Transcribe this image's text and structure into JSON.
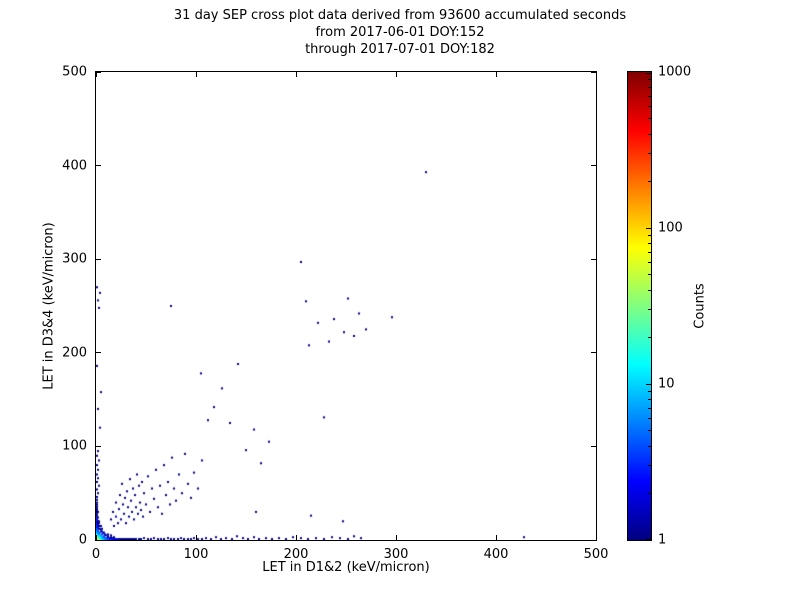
{
  "chart_data": {
    "type": "scatter",
    "title": "31 day SEP cross plot data derived from 93600 accumulated seconds",
    "subtitle": [
      "from 2017-06-01 DOY:152",
      "through 2017-07-01 DOY:182"
    ],
    "xlabel": "LET in D1&2 (keV/micron)",
    "ylabel": "LET in D3&4 (keV/micron)",
    "xlim": [
      0,
      500
    ],
    "ylim": [
      0,
      500
    ],
    "xticks": [
      0,
      100,
      200,
      300,
      400,
      500
    ],
    "yticks": [
      0,
      100,
      200,
      300,
      400,
      500
    ],
    "grid": false,
    "marker_size_px": 2,
    "colorbar": {
      "label": "Counts",
      "scale": "log",
      "min": 1,
      "max": 1000,
      "ticks": [
        1,
        10,
        100,
        1000
      ],
      "colormap": "jet"
    },
    "points": [
      [
        0.6,
        0.6,
        120
      ],
      [
        1,
        1,
        110
      ],
      [
        1.6,
        0.8,
        90
      ],
      [
        0.8,
        1.6,
        85
      ],
      [
        2,
        1,
        70
      ],
      [
        1,
        2,
        66
      ],
      [
        2,
        2,
        52
      ],
      [
        3,
        1,
        44
      ],
      [
        1,
        3,
        42
      ],
      [
        3,
        2,
        34
      ],
      [
        2,
        3,
        33
      ],
      [
        3,
        3,
        26
      ],
      [
        4,
        1,
        32
      ],
      [
        1,
        4,
        30
      ],
      [
        4,
        2,
        24
      ],
      [
        2,
        4,
        23
      ],
      [
        4,
        3,
        17
      ],
      [
        3,
        4,
        17
      ],
      [
        4,
        4,
        13
      ],
      [
        5,
        1,
        22
      ],
      [
        1,
        5,
        21
      ],
      [
        5,
        2,
        16
      ],
      [
        2,
        5,
        16
      ],
      [
        5,
        3,
        11
      ],
      [
        3,
        5,
        11
      ],
      [
        5,
        5,
        7
      ],
      [
        6,
        1,
        15
      ],
      [
        1,
        6,
        15
      ],
      [
        6,
        2,
        11
      ],
      [
        2,
        6,
        11
      ],
      [
        6,
        3,
        8
      ],
      [
        3,
        6,
        8
      ],
      [
        6,
        6,
        4
      ],
      [
        7,
        1,
        11
      ],
      [
        1,
        7,
        11
      ],
      [
        7,
        2,
        8
      ],
      [
        2,
        7,
        8
      ],
      [
        7,
        3,
        6
      ],
      [
        3,
        7,
        6
      ],
      [
        7,
        7,
        3
      ],
      [
        8,
        1,
        9
      ],
      [
        1,
        8,
        9
      ],
      [
        8,
        2,
        7
      ],
      [
        2,
        8,
        6
      ],
      [
        8,
        4,
        4
      ],
      [
        4,
        8,
        4
      ],
      [
        9,
        1,
        7
      ],
      [
        1,
        9,
        7
      ],
      [
        9,
        2,
        5
      ],
      [
        2,
        9,
        5
      ],
      [
        10,
        1,
        6
      ],
      [
        1,
        10,
        6
      ],
      [
        10,
        2,
        4
      ],
      [
        2,
        10,
        4
      ],
      [
        10,
        5,
        2
      ],
      [
        5,
        10,
        2
      ],
      [
        11,
        1,
        5
      ],
      [
        1,
        11,
        5
      ],
      [
        12,
        1,
        4
      ],
      [
        1,
        12,
        4
      ],
      [
        12,
        3,
        2
      ],
      [
        3,
        12,
        2
      ],
      [
        13,
        1,
        4
      ],
      [
        1,
        13,
        4
      ],
      [
        14,
        1,
        3
      ],
      [
        1,
        14,
        3
      ],
      [
        14,
        2,
        2
      ],
      [
        2,
        14,
        2
      ],
      [
        15,
        1,
        3
      ],
      [
        1,
        15,
        3
      ],
      [
        16,
        1,
        3
      ],
      [
        1,
        16,
        3
      ],
      [
        16,
        2,
        2
      ],
      [
        2,
        16,
        2
      ],
      [
        18,
        1,
        2
      ],
      [
        1,
        18,
        2
      ],
      [
        18,
        3,
        1
      ],
      [
        3,
        18,
        1
      ],
      [
        20,
        1,
        2
      ],
      [
        1,
        20,
        2
      ],
      [
        2,
        18,
        1
      ],
      [
        22,
        1,
        2
      ],
      [
        1,
        22,
        2
      ],
      [
        4,
        12,
        1
      ],
      [
        12,
        4,
        1
      ],
      [
        24,
        1,
        1
      ],
      [
        1,
        24,
        2
      ],
      [
        2,
        20,
        1
      ],
      [
        26,
        1,
        1
      ],
      [
        1,
        26,
        1
      ],
      [
        28,
        1,
        1
      ],
      [
        1,
        28,
        1
      ],
      [
        2,
        24,
        1
      ],
      [
        30,
        1,
        1
      ],
      [
        1,
        30,
        1
      ],
      [
        32,
        1,
        1
      ],
      [
        1,
        32,
        1
      ],
      [
        3,
        20,
        1
      ],
      [
        34,
        1,
        1
      ],
      [
        1,
        34,
        1
      ],
      [
        36,
        1,
        1
      ],
      [
        1,
        36,
        1
      ],
      [
        2,
        30,
        1
      ],
      [
        38,
        1,
        1
      ],
      [
        1,
        38,
        1
      ],
      [
        40,
        1,
        1
      ],
      [
        1,
        40,
        1
      ],
      [
        1,
        43,
        1
      ],
      [
        43,
        1,
        1
      ],
      [
        5,
        15,
        1
      ],
      [
        15,
        5,
        1
      ],
      [
        6,
        12,
        1
      ],
      [
        12,
        6,
        1
      ],
      [
        8,
        8,
        2
      ],
      [
        9,
        6,
        1
      ],
      [
        6,
        9,
        1
      ],
      [
        15,
        3,
        1
      ],
      [
        3,
        15,
        1
      ],
      [
        45,
        1,
        1
      ],
      [
        48,
        2,
        1
      ],
      [
        52,
        1,
        1
      ],
      [
        55,
        1,
        1
      ],
      [
        58,
        2,
        1
      ],
      [
        62,
        1,
        1
      ],
      [
        65,
        1,
        1
      ],
      [
        68,
        1,
        1
      ],
      [
        72,
        2,
        1
      ],
      [
        75,
        1,
        1
      ],
      [
        78,
        1,
        1
      ],
      [
        82,
        1,
        1
      ],
      [
        85,
        2,
        1
      ],
      [
        88,
        1,
        1
      ],
      [
        92,
        1,
        1
      ],
      [
        95,
        1,
        1
      ],
      [
        98,
        2,
        1
      ],
      [
        102,
        1,
        1
      ],
      [
        106,
        1,
        1
      ],
      [
        110,
        2,
        1
      ],
      [
        115,
        1,
        1
      ],
      [
        120,
        3,
        1
      ],
      [
        125,
        1,
        1
      ],
      [
        130,
        2,
        1
      ],
      [
        136,
        1,
        1
      ],
      [
        141,
        4,
        1
      ],
      [
        147,
        2,
        1
      ],
      [
        152,
        1,
        1
      ],
      [
        158,
        3,
        1
      ],
      [
        163,
        1,
        1
      ],
      [
        170,
        2,
        1
      ],
      [
        176,
        1,
        1
      ],
      [
        183,
        2,
        1
      ],
      [
        190,
        1,
        1
      ],
      [
        197,
        3,
        1
      ],
      [
        205,
        2,
        1
      ],
      [
        212,
        1,
        1
      ],
      [
        220,
        2,
        1
      ],
      [
        228,
        1,
        1
      ],
      [
        236,
        3,
        1
      ],
      [
        244,
        2,
        1
      ],
      [
        252,
        1,
        1
      ],
      [
        258,
        4,
        1
      ],
      [
        265,
        2,
        1
      ],
      [
        428,
        3,
        1
      ],
      [
        1,
        46,
        1
      ],
      [
        2,
        50,
        1
      ],
      [
        1,
        54,
        1
      ],
      [
        3,
        58,
        1
      ],
      [
        1,
        62,
        1
      ],
      [
        2,
        66,
        1
      ],
      [
        1,
        70,
        1
      ],
      [
        2,
        75,
        1
      ],
      [
        1,
        80,
        1
      ],
      [
        3,
        85,
        1
      ],
      [
        1,
        90,
        1
      ],
      [
        2,
        95,
        1
      ],
      [
        4,
        120,
        1
      ],
      [
        2,
        140,
        1
      ],
      [
        5,
        158,
        1
      ],
      [
        1,
        186,
        1
      ],
      [
        3,
        248,
        1
      ],
      [
        2,
        256,
        1
      ],
      [
        4,
        264,
        1
      ],
      [
        1,
        270,
        1
      ],
      [
        15,
        22,
        1
      ],
      [
        17,
        30,
        1
      ],
      [
        18,
        15,
        1
      ],
      [
        20,
        25,
        2
      ],
      [
        20,
        40,
        1
      ],
      [
        22,
        18,
        1
      ],
      [
        23,
        33,
        1
      ],
      [
        24,
        48,
        1
      ],
      [
        25,
        22,
        1
      ],
      [
        26,
        60,
        1
      ],
      [
        27,
        38,
        1
      ],
      [
        28,
        28,
        1
      ],
      [
        29,
        45,
        1
      ],
      [
        30,
        18,
        1
      ],
      [
        31,
        52,
        1
      ],
      [
        32,
        35,
        1
      ],
      [
        33,
        25,
        1
      ],
      [
        34,
        65,
        1
      ],
      [
        35,
        42,
        1
      ],
      [
        36,
        30,
        1
      ],
      [
        37,
        55,
        1
      ],
      [
        38,
        22,
        1
      ],
      [
        39,
        48,
        1
      ],
      [
        40,
        35,
        1
      ],
      [
        41,
        70,
        1
      ],
      [
        42,
        28,
        1
      ],
      [
        43,
        58,
        1
      ],
      [
        44,
        40,
        1
      ],
      [
        45,
        32,
        1
      ],
      [
        46,
        62,
        1
      ],
      [
        47,
        25,
        1
      ],
      [
        48,
        50,
        1
      ],
      [
        50,
        38,
        1
      ],
      [
        52,
        68,
        1
      ],
      [
        54,
        30,
        1
      ],
      [
        56,
        55,
        1
      ],
      [
        58,
        44,
        1
      ],
      [
        60,
        75,
        1
      ],
      [
        62,
        35,
        1
      ],
      [
        64,
        58,
        1
      ],
      [
        66,
        28,
        1
      ],
      [
        68,
        80,
        1
      ],
      [
        70,
        48,
        1
      ],
      [
        72,
        62,
        1
      ],
      [
        74,
        38,
        1
      ],
      [
        76,
        88,
        1
      ],
      [
        78,
        55,
        1
      ],
      [
        80,
        42,
        1
      ],
      [
        83,
        70,
        1
      ],
      [
        86,
        50,
        1
      ],
      [
        89,
        92,
        1
      ],
      [
        92,
        60,
        1
      ],
      [
        95,
        45,
        1
      ],
      [
        98,
        72,
        1
      ],
      [
        102,
        55,
        1
      ],
      [
        106,
        85,
        1
      ],
      [
        75,
        250,
        1
      ],
      [
        105,
        178,
        1
      ],
      [
        112,
        128,
        1
      ],
      [
        118,
        142,
        1
      ],
      [
        126,
        162,
        1
      ],
      [
        134,
        125,
        1
      ],
      [
        142,
        188,
        1
      ],
      [
        150,
        96,
        1
      ],
      [
        158,
        118,
        1
      ],
      [
        165,
        82,
        1
      ],
      [
        173,
        105,
        1
      ],
      [
        160,
        30,
        1
      ],
      [
        215,
        26,
        1
      ],
      [
        247,
        20,
        1
      ],
      [
        205,
        297,
        1
      ],
      [
        210,
        255,
        1
      ],
      [
        213,
        208,
        1
      ],
      [
        222,
        232,
        1
      ],
      [
        228,
        131,
        1
      ],
      [
        233,
        212,
        1
      ],
      [
        238,
        236,
        1
      ],
      [
        248,
        222,
        1
      ],
      [
        252,
        258,
        1
      ],
      [
        258,
        218,
        1
      ],
      [
        263,
        242,
        1
      ],
      [
        270,
        225,
        1
      ],
      [
        296,
        238,
        1
      ],
      [
        330,
        393,
        1
      ]
    ]
  }
}
